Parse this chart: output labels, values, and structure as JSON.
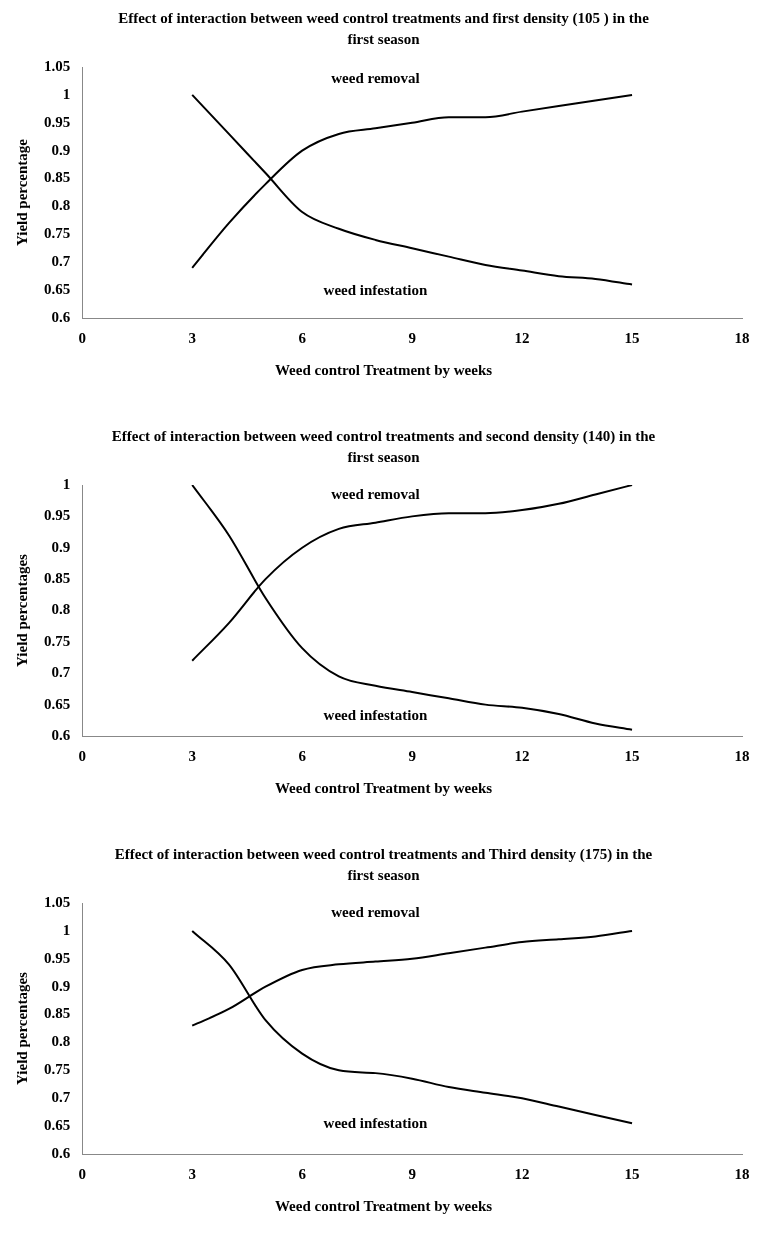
{
  "chart_data": [
    {
      "type": "line",
      "title": "Effect of  interaction between weed control treatments and first density  (105 ) in the first season",
      "xlabel": "Weed control Treatment by weeks",
      "ylabel": "Yield percentage",
      "x": [
        3,
        4,
        5,
        6,
        7,
        8,
        9,
        10,
        11,
        12,
        13,
        14,
        15
      ],
      "xlim": [
        0,
        18
      ],
      "xticks": [
        0,
        3,
        6,
        9,
        12,
        15,
        18
      ],
      "ylim": [
        0.6,
        1.05
      ],
      "yticks": [
        0.6,
        0.65,
        0.7,
        0.75,
        0.8,
        0.85,
        0.9,
        0.95,
        1,
        1.05
      ],
      "grid": false,
      "legend": false,
      "marker": "none",
      "series": [
        {
          "name": "weed removal",
          "color": "#000000",
          "values": [
            0.69,
            0.77,
            0.84,
            0.9,
            0.93,
            0.94,
            0.95,
            0.96,
            0.96,
            0.97,
            0.98,
            0.99,
            1.0
          ]
        },
        {
          "name": "weed infestation",
          "color": "#000000",
          "values": [
            1.0,
            0.93,
            0.86,
            0.79,
            0.76,
            0.74,
            0.725,
            0.71,
            0.695,
            0.685,
            0.675,
            0.67,
            0.66
          ]
        }
      ]
    },
    {
      "type": "line",
      "title": "Effect of interaction between weed control treatments and second density  (140) in the first season",
      "xlabel": "Weed control Treatment by weeks",
      "ylabel": "Yield percentages",
      "x": [
        3,
        4,
        5,
        6,
        7,
        8,
        9,
        10,
        11,
        12,
        13,
        14,
        15
      ],
      "xlim": [
        0,
        18
      ],
      "xticks": [
        0,
        3,
        6,
        9,
        12,
        15,
        18
      ],
      "ylim": [
        0.6,
        1
      ],
      "yticks": [
        0.6,
        0.65,
        0.7,
        0.75,
        0.8,
        0.85,
        0.9,
        0.95,
        1
      ],
      "grid": false,
      "legend": false,
      "marker": "none",
      "series": [
        {
          "name": "weed removal",
          "color": "#000000",
          "values": [
            0.72,
            0.78,
            0.85,
            0.9,
            0.93,
            0.94,
            0.95,
            0.955,
            0.955,
            0.96,
            0.97,
            0.985,
            1.0
          ]
        },
        {
          "name": "weed infestation",
          "color": "#000000",
          "values": [
            1.0,
            0.92,
            0.82,
            0.74,
            0.695,
            0.68,
            0.67,
            0.66,
            0.65,
            0.645,
            0.635,
            0.62,
            0.61
          ]
        }
      ]
    },
    {
      "type": "line",
      "title": "Effect of interaction between weed control treatments and Third density  (175) in the first season",
      "xlabel": "Weed control Treatment by weeks",
      "ylabel": "Yield percentages",
      "x": [
        3,
        4,
        5,
        6,
        7,
        8,
        9,
        10,
        11,
        12,
        13,
        14,
        15
      ],
      "xlim": [
        0,
        18
      ],
      "xticks": [
        0,
        3,
        6,
        9,
        12,
        15,
        18
      ],
      "ylim": [
        0.6,
        1.05
      ],
      "yticks": [
        0.6,
        0.65,
        0.7,
        0.75,
        0.8,
        0.85,
        0.9,
        0.95,
        1,
        1.05
      ],
      "grid": false,
      "legend": false,
      "marker": "none",
      "series": [
        {
          "name": "weed removal",
          "color": "#000000",
          "values": [
            0.83,
            0.86,
            0.9,
            0.93,
            0.94,
            0.945,
            0.95,
            0.96,
            0.97,
            0.98,
            0.985,
            0.99,
            1.0
          ]
        },
        {
          "name": "weed infestation",
          "color": "#000000",
          "values": [
            1.0,
            0.94,
            0.84,
            0.78,
            0.75,
            0.745,
            0.735,
            0.72,
            0.71,
            0.7,
            0.685,
            0.67,
            0.655
          ]
        }
      ]
    }
  ]
}
